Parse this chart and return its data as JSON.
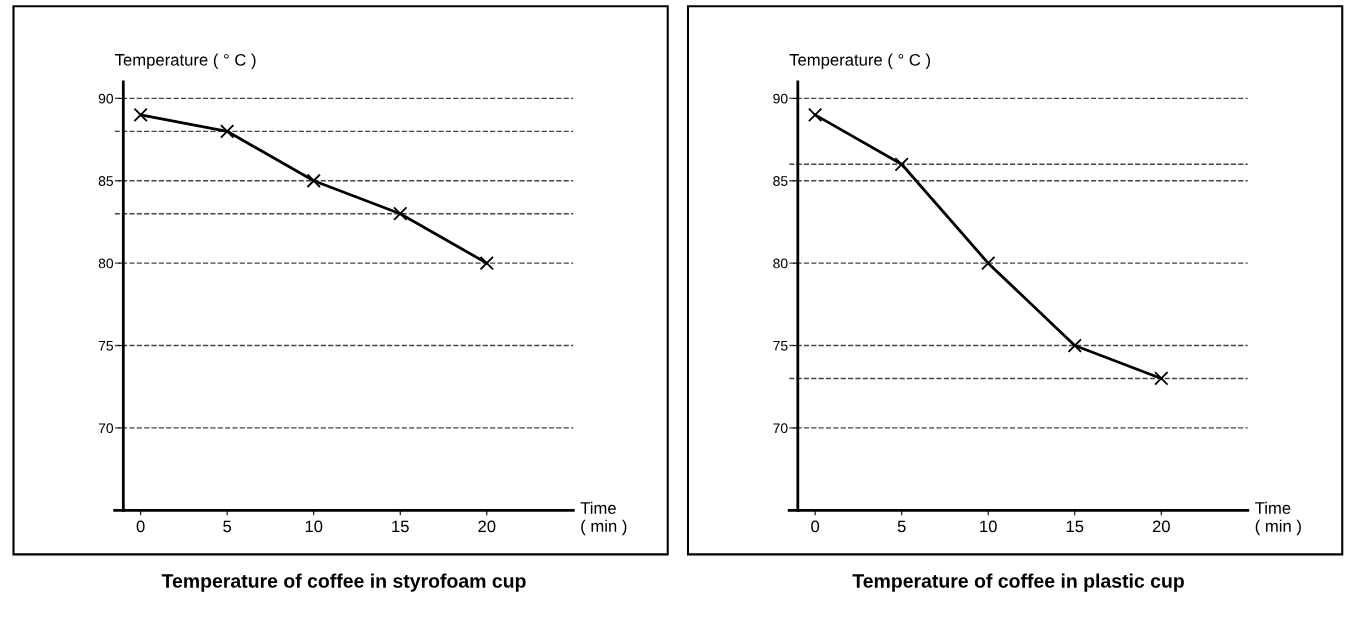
{
  "chart_data": [
    {
      "type": "line",
      "title": "Temperature of coffee in styrofoam cup",
      "xlabel": "Time\n( min )",
      "ylabel": "Temperature ( ° C )",
      "x": [
        0,
        5,
        10,
        15,
        20
      ],
      "series": [
        {
          "color": "#000000",
          "values": [
            89,
            88,
            85,
            83,
            80
          ]
        }
      ],
      "xlim": [
        -1.5,
        25
      ],
      "ylim": [
        65,
        91
      ],
      "xticks": [
        0,
        5,
        10,
        15,
        20
      ],
      "yticks": [
        70,
        75,
        80,
        85,
        90
      ],
      "grid": "y",
      "marker": "cross",
      "line_style": "solid",
      "ref_lines": [
        {
          "axis": "y",
          "value": 88,
          "label": null,
          "line_style": "dashed"
        },
        {
          "axis": "y",
          "value": 83,
          "label": null,
          "line_style": "dashed"
        }
      ]
    },
    {
      "type": "line",
      "title": "Temperature of coffee in plastic cup",
      "xlabel": "Time\n( min )",
      "ylabel": "Temperature ( ° C )",
      "x": [
        0,
        5,
        10,
        15,
        20
      ],
      "series": [
        {
          "color": "#000000",
          "values": [
            89,
            86,
            80,
            75,
            73
          ]
        }
      ],
      "xlim": [
        -1.5,
        25
      ],
      "ylim": [
        65,
        91
      ],
      "xticks": [
        0,
        5,
        10,
        15,
        20
      ],
      "yticks": [
        70,
        75,
        80,
        85,
        90
      ],
      "grid": "y",
      "marker": "cross",
      "line_style": "solid",
      "ref_lines": [
        {
          "axis": "y",
          "value": 86,
          "label": null,
          "line_style": "dashed"
        },
        {
          "axis": "y",
          "value": 73,
          "label": null,
          "line_style": "dashed"
        }
      ]
    }
  ]
}
